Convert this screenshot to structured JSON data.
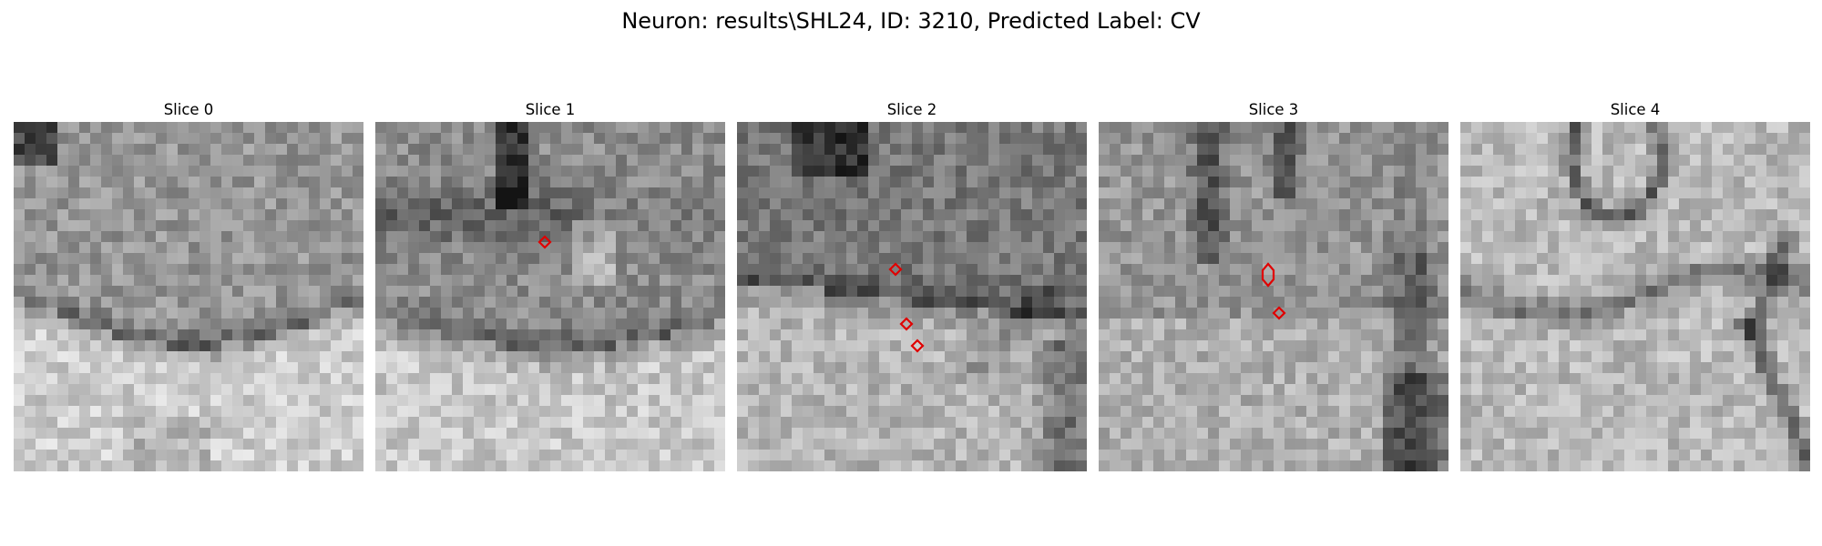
{
  "figure": {
    "title": "Neuron: results\\SHL24, ID: 3210, Predicted Label: CV"
  },
  "panels": [
    {
      "title": "Slice 0",
      "seed": 11,
      "pattern": "membrane-arc",
      "markers": []
    },
    {
      "title": "Slice 1",
      "seed": 23,
      "pattern": "dark-top",
      "markers": [
        {
          "col": 15,
          "row": 10.5,
          "shape": "diamond"
        }
      ]
    },
    {
      "title": "Slice 2",
      "seed": 37,
      "pattern": "dark-top-right",
      "markers": [
        {
          "col": 14,
          "row": 13,
          "shape": "diamond"
        },
        {
          "col": 15,
          "row": 18,
          "shape": "diamond"
        },
        {
          "col": 16,
          "row": 20,
          "shape": "diamond"
        }
      ]
    },
    {
      "title": "Slice 3",
      "seed": 53,
      "pattern": "dark-streaks",
      "markers": [
        {
          "col": 15,
          "row": 13.5,
          "shape": "oval"
        },
        {
          "col": 16,
          "row": 17,
          "shape": "diamond"
        }
      ]
    },
    {
      "title": "Slice 4",
      "seed": 71,
      "pattern": "membranes",
      "markers": []
    }
  ],
  "colors": {
    "marker": "#e00000"
  }
}
